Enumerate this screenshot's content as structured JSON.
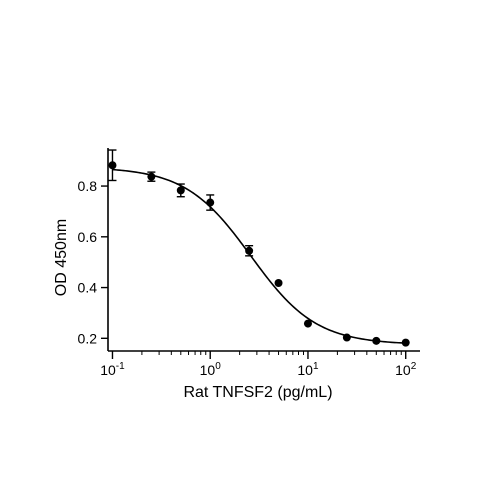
{
  "chart_data": {
    "type": "scatter",
    "xlabel": "Rat TNFSF2 (pg/mL)",
    "ylabel": "OD 450nm",
    "x_scale": "log",
    "xlim": [
      0.09,
      140
    ],
    "ylim": [
      0.15,
      0.95
    ],
    "x_ticks": [
      {
        "value": 0.1,
        "base": "10",
        "exp": "-1"
      },
      {
        "value": 1,
        "base": "10",
        "exp": "0"
      },
      {
        "value": 10,
        "base": "10",
        "exp": "1"
      },
      {
        "value": 100,
        "base": "10",
        "exp": "2"
      }
    ],
    "y_ticks": [
      {
        "value": 0.2,
        "label": "0.2"
      },
      {
        "value": 0.4,
        "label": "0.4"
      },
      {
        "value": 0.6,
        "label": "0.6"
      },
      {
        "value": 0.8,
        "label": "0.8"
      }
    ],
    "grid": false,
    "legend": "none",
    "series": [
      {
        "points": [
          {
            "x": 0.1,
            "y": 0.882,
            "err": 0.06
          },
          {
            "x": 0.25,
            "y": 0.837,
            "err": 0.018
          },
          {
            "x": 0.5,
            "y": 0.783,
            "err": 0.025
          },
          {
            "x": 1,
            "y": 0.735,
            "err": 0.03
          },
          {
            "x": 2.5,
            "y": 0.545,
            "err": 0.02
          },
          {
            "x": 5,
            "y": 0.418,
            "err": 0
          },
          {
            "x": 10,
            "y": 0.258,
            "err": 0
          },
          {
            "x": 25,
            "y": 0.203,
            "err": 0
          },
          {
            "x": 50,
            "y": 0.19,
            "err": 0
          },
          {
            "x": 100,
            "y": 0.183,
            "err": 0
          }
        ],
        "fit": {
          "model": "4PL",
          "top": 0.875,
          "bottom": 0.175,
          "ec50": 2.6,
          "hill": 1.3,
          "x_range": [
            0.1,
            100
          ]
        }
      }
    ]
  }
}
